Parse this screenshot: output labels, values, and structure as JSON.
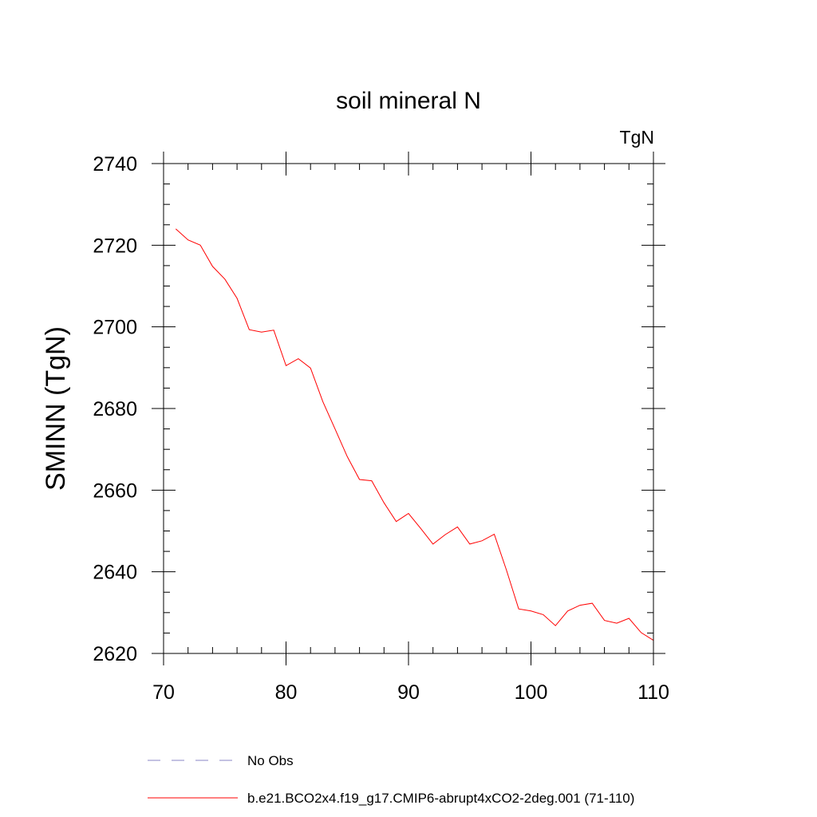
{
  "chart_data": {
    "type": "line",
    "title": "soil mineral N",
    "units_label": "TgN",
    "ylabel": "SMINN  (TgN)",
    "xlabel": "",
    "xlim": [
      70,
      110
    ],
    "ylim": [
      2620,
      2740
    ],
    "x_ticks": [
      70,
      80,
      90,
      100,
      110
    ],
    "y_ticks": [
      2620,
      2640,
      2660,
      2680,
      2700,
      2720,
      2740
    ],
    "x_tick_labels": [
      "70",
      "80",
      "90",
      "100",
      "110"
    ],
    "y_tick_labels": [
      "2620",
      "2640",
      "2660",
      "2680",
      "2700",
      "2720",
      "2740"
    ],
    "x_minor_step": 2,
    "y_minor_step": 5,
    "grid": false,
    "legend_position": "bottom",
    "legend": [
      {
        "label": "No Obs",
        "color": "#8a86c6",
        "style": "dashed"
      },
      {
        "label": "b.e21.BCO2x4.f19_g17.CMIP6-abrupt4xCO2-2deg.001 (71-110)",
        "color": "#ff0000",
        "style": "solid"
      }
    ],
    "series": [
      {
        "name": "b.e21.BCO2x4.f19_g17.CMIP6-abrupt4xCO2-2deg.001 (71-110)",
        "color": "#ff0000",
        "x": [
          71,
          72,
          73,
          74,
          75,
          76,
          77,
          78,
          79,
          80,
          81,
          82,
          83,
          84,
          85,
          86,
          87,
          88,
          89,
          90,
          91,
          92,
          93,
          94,
          95,
          96,
          97,
          98,
          99,
          100,
          101,
          102,
          103,
          104,
          105,
          106,
          107,
          108,
          109,
          110
        ],
        "values": [
          2724.0,
          2721.3,
          2720.0,
          2714.8,
          2711.7,
          2707.0,
          2699.3,
          2698.7,
          2699.2,
          2690.5,
          2692.2,
          2689.9,
          2681.7,
          2675.0,
          2668.2,
          2662.6,
          2662.3,
          2656.9,
          2652.3,
          2654.3,
          2650.6,
          2646.8,
          2649.1,
          2651.0,
          2646.8,
          2647.6,
          2649.2,
          2640.4,
          2630.9,
          2630.4,
          2629.5,
          2626.8,
          2630.4,
          2631.8,
          2632.3,
          2628.1,
          2627.4,
          2628.6,
          2625.1,
          2623.2
        ]
      }
    ]
  }
}
